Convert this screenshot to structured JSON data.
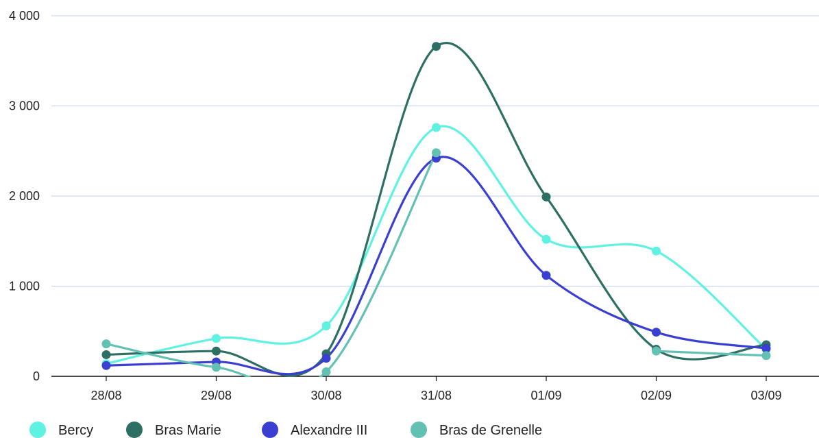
{
  "chart_data": {
    "type": "line",
    "categories": [
      "28/08",
      "29/08",
      "30/08",
      "31/08",
      "01/09",
      "02/09",
      "03/09"
    ],
    "ylim": [
      0,
      4000
    ],
    "yticks": [
      0,
      1000,
      2000,
      3000,
      4000
    ],
    "ytick_labels": [
      "0",
      "1 000",
      "2 000",
      "3 000",
      "4 000"
    ],
    "grid": true,
    "legend_position": "bottom-left",
    "smooth": true,
    "series": [
      {
        "name": "Bercy",
        "color": "#5ff2e2",
        "values": [
          140,
          420,
          560,
          2760,
          1520,
          1390,
          300
        ]
      },
      {
        "name": "Bras Marie",
        "color": "#2e6f63",
        "values": [
          240,
          280,
          250,
          3660,
          1990,
          300,
          350
        ]
      },
      {
        "name": "Alexandre III",
        "color": "#3b3fd1",
        "values": [
          120,
          160,
          200,
          2420,
          1120,
          490,
          310
        ]
      },
      {
        "name": "Bras de Grenelle",
        "color": "#63c1b4",
        "values": [
          360,
          100,
          50,
          2480,
          null,
          280,
          230
        ]
      }
    ]
  }
}
